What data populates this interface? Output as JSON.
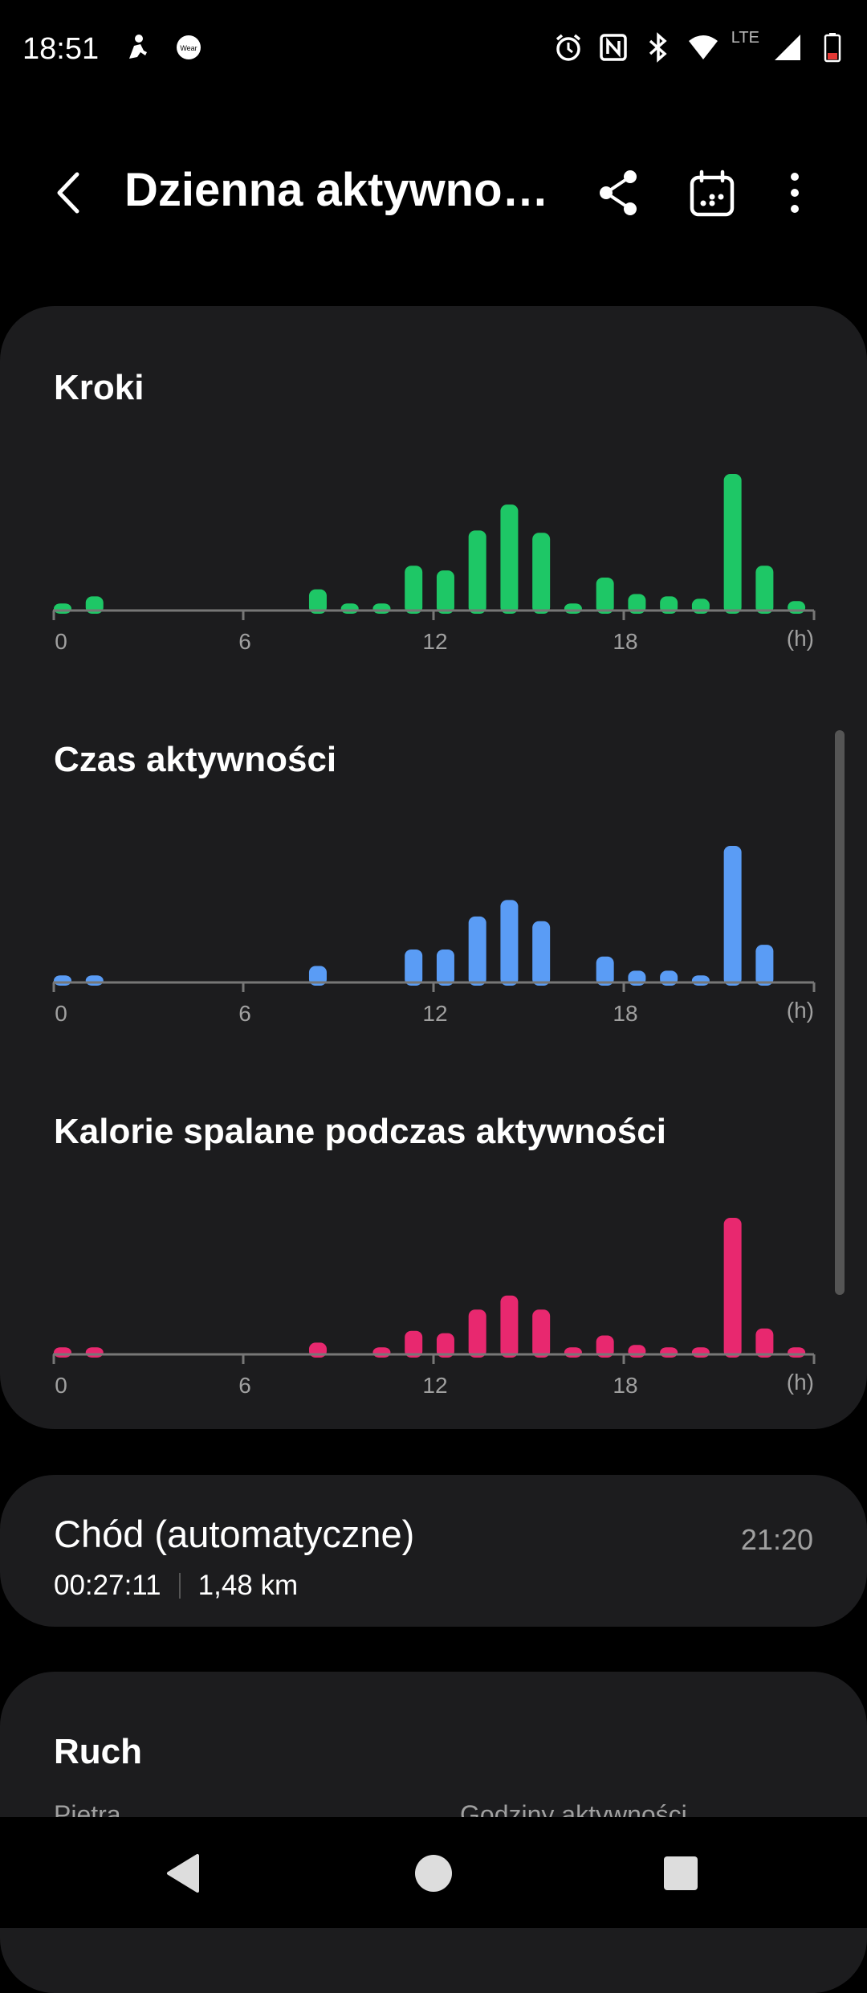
{
  "status": {
    "time": "18:51",
    "network": "LTE"
  },
  "header": {
    "title": "Dzienna aktywno…"
  },
  "charts": [
    {
      "title": "Kroki",
      "color": "#1ec766",
      "chart_data": {
        "type": "bar",
        "x": [
          0,
          1,
          2,
          3,
          4,
          5,
          6,
          7,
          8,
          9,
          10,
          11,
          12,
          13,
          14,
          15,
          16,
          17,
          18,
          19,
          20,
          21,
          22,
          23
        ],
        "values": [
          3,
          6,
          0,
          0,
          0,
          0,
          0,
          0,
          9,
          3,
          3,
          19,
          17,
          34,
          45,
          33,
          3,
          14,
          7,
          6,
          5,
          58,
          19,
          4
        ],
        "x_ticks": [
          "0",
          "6",
          "12",
          "18"
        ],
        "x_unit": "(h)"
      }
    },
    {
      "title": "Czas aktywności",
      "color": "#5a9cf5",
      "chart_data": {
        "type": "bar",
        "x": [
          0,
          1,
          2,
          3,
          4,
          5,
          6,
          7,
          8,
          9,
          10,
          11,
          12,
          13,
          14,
          15,
          16,
          17,
          18,
          19,
          20,
          21,
          22,
          23
        ],
        "values": [
          3,
          3,
          0,
          0,
          0,
          0,
          0,
          0,
          7,
          0,
          0,
          14,
          14,
          28,
          35,
          26,
          0,
          11,
          5,
          5,
          3,
          58,
          16,
          0
        ],
        "x_ticks": [
          "0",
          "6",
          "12",
          "18"
        ],
        "x_unit": "(h)"
      }
    },
    {
      "title": "Kalorie spalane podczas aktywności",
      "color": "#e8286f",
      "chart_data": {
        "type": "bar",
        "x": [
          0,
          1,
          2,
          3,
          4,
          5,
          6,
          7,
          8,
          9,
          10,
          11,
          12,
          13,
          14,
          15,
          16,
          17,
          18,
          19,
          20,
          21,
          22,
          23
        ],
        "values": [
          3,
          3,
          0,
          0,
          0,
          0,
          0,
          0,
          5,
          0,
          3,
          10,
          9,
          19,
          25,
          19,
          3,
          8,
          4,
          3,
          3,
          58,
          11,
          3
        ],
        "x_ticks": [
          "0",
          "6",
          "12",
          "18"
        ],
        "x_unit": "(h)"
      }
    }
  ],
  "activity": {
    "title": "Chód (automatyczne)",
    "time": "21:20",
    "duration": "00:27:11",
    "distance": "1,48 km"
  },
  "ruch": {
    "title": "Ruch",
    "label_left": "Piętra",
    "label_right": "Godziny aktywności"
  }
}
